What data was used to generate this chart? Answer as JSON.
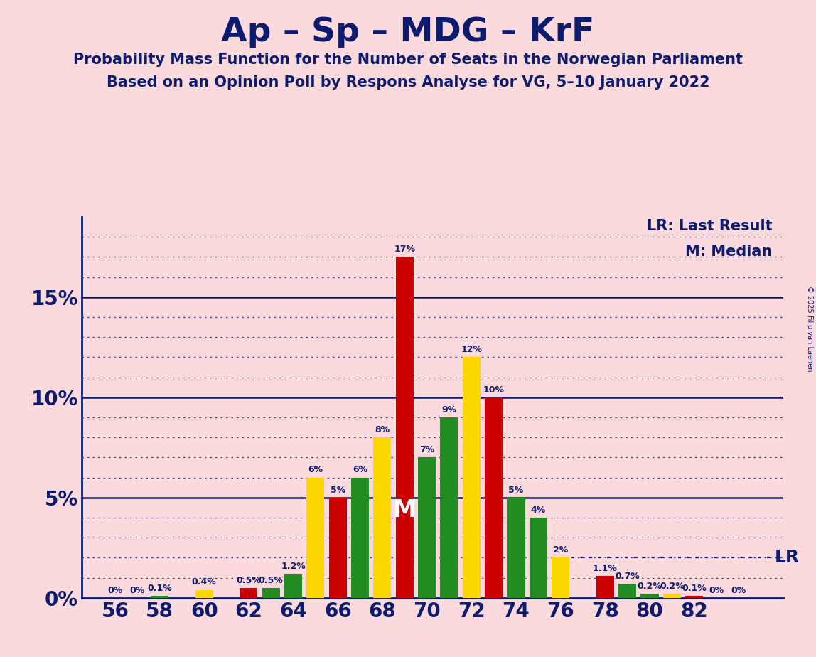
{
  "title": "Ap – Sp – MDG – KrF",
  "subtitle1": "Probability Mass Function for the Number of Seats in the Norwegian Parliament",
  "subtitle2": "Based on an Opinion Poll by Respons Analyse for VG, 5–10 January 2022",
  "copyright": "© 2025 Filip van Laenen",
  "legend_lr": "LR: Last Result",
  "legend_m": "M: Median",
  "bg_color": "#FADADD",
  "text_color": "#0D1B6E",
  "median_label": "M",
  "lr_label": "LR",
  "median_seat": 69,
  "lr_pct": 0.02,
  "bars": [
    [
      56,
      0.0,
      "#CC0000"
    ],
    [
      57,
      0.0,
      "#228B22"
    ],
    [
      58,
      0.001,
      "#228B22"
    ],
    [
      59,
      0.0,
      "#FFD700"
    ],
    [
      60,
      0.004,
      "#FFD700"
    ],
    [
      61,
      0.0,
      "#CC0000"
    ],
    [
      62,
      0.005,
      "#CC0000"
    ],
    [
      63,
      0.005,
      "#228B22"
    ],
    [
      64,
      0.012,
      "#228B22"
    ],
    [
      65,
      0.06,
      "#FFD700"
    ],
    [
      66,
      0.05,
      "#CC0000"
    ],
    [
      67,
      0.06,
      "#228B22"
    ],
    [
      68,
      0.08,
      "#FFD700"
    ],
    [
      69,
      0.17,
      "#CC0000"
    ],
    [
      70,
      0.07,
      "#228B22"
    ],
    [
      71,
      0.09,
      "#228B22"
    ],
    [
      72,
      0.12,
      "#FFD700"
    ],
    [
      73,
      0.1,
      "#CC0000"
    ],
    [
      74,
      0.05,
      "#228B22"
    ],
    [
      75,
      0.04,
      "#228B22"
    ],
    [
      76,
      0.02,
      "#FFD700"
    ],
    [
      77,
      0.0,
      "#CC0000"
    ],
    [
      78,
      0.011,
      "#CC0000"
    ],
    [
      79,
      0.007,
      "#228B22"
    ],
    [
      80,
      0.002,
      "#228B22"
    ],
    [
      81,
      0.002,
      "#FFD700"
    ],
    [
      82,
      0.001,
      "#CC0000"
    ],
    [
      83,
      0.0,
      "#228B22"
    ],
    [
      84,
      0.0,
      "#FFD700"
    ]
  ],
  "bar_labels": {
    "56": "0%",
    "57": "0%",
    "58": "0.1%",
    "60": "0.4%",
    "62": "0.5%",
    "63": "0.5%",
    "64": "1.2%",
    "65": "6%",
    "66": "5%",
    "67": "6%",
    "68": "8%",
    "69": "17%",
    "70": "7%",
    "71": "9%",
    "72": "12%",
    "73": "10%",
    "74": "5%",
    "75": "4%",
    "76": "2%",
    "78": "1.1%",
    "79": "0.7%",
    "80": "0.2%",
    "81": "0.2%",
    "82": "0.1%",
    "83": "0%",
    "84": "0%"
  },
  "xticks": [
    56,
    58,
    60,
    62,
    64,
    66,
    68,
    70,
    72,
    74,
    76,
    78,
    80,
    82
  ],
  "yticks": [
    0.0,
    0.05,
    0.1,
    0.15
  ],
  "ytick_labels": [
    "0%",
    "5%",
    "10%",
    "15%"
  ],
  "xlim": [
    54.5,
    86.0
  ],
  "ylim": [
    0,
    0.19
  ],
  "minor_grid_step": 0.01,
  "title_fontsize": 34,
  "subtitle_fontsize": 15,
  "tick_fontsize": 20,
  "label_fontsize": 9,
  "legend_fontsize": 15,
  "median_fontsize": 24,
  "lr_fontsize": 18
}
